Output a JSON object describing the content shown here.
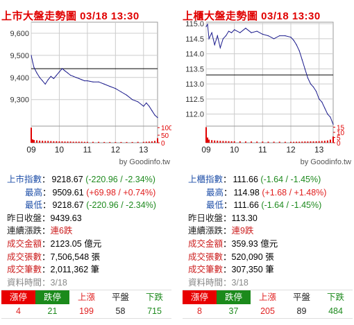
{
  "panels": [
    {
      "title": "上市大盤走勢圖 03/18 13:30",
      "source": "by Goodinfo.tw",
      "chart_data": {
        "type": "line",
        "title": "上市大盤走勢圖 03/18 13:30",
        "x_ticks": [
          "09",
          "10",
          "11",
          "12",
          "13"
        ],
        "y_ticks": [
          9300,
          9400,
          9500,
          9600
        ],
        "y_tick_labels": [
          "9,300",
          "9,400",
          "9,500",
          "9,600"
        ],
        "ylim": [
          9180,
          9650
        ],
        "reference_value": 9439.63,
        "volume_ticks": [
          0,
          50,
          100
        ],
        "volume_ylim": [
          0,
          110
        ],
        "x_hours": [
          9.0,
          9.05,
          9.1,
          9.2,
          9.3,
          9.4,
          9.5,
          9.6,
          9.7,
          9.8,
          9.9,
          10.0,
          10.1,
          10.2,
          10.3,
          10.4,
          10.5,
          10.6,
          10.7,
          10.8,
          10.9,
          11.0,
          11.2,
          11.4,
          11.6,
          11.8,
          12.0,
          12.2,
          12.4,
          12.6,
          12.8,
          13.0,
          13.1,
          13.2,
          13.3,
          13.4,
          13.5
        ],
        "values": [
          9500,
          9470,
          9445,
          9420,
          9400,
          9385,
          9370,
          9390,
          9405,
          9395,
          9410,
          9425,
          9440,
          9430,
          9420,
          9410,
          9405,
          9400,
          9395,
          9390,
          9385,
          9385,
          9380,
          9380,
          9370,
          9360,
          9350,
          9335,
          9320,
          9300,
          9290,
          9270,
          9285,
          9270,
          9250,
          9230,
          9218.67
        ],
        "volume": [
          100,
          22,
          18,
          16,
          14,
          13,
          12,
          12,
          11,
          10,
          10,
          9,
          9,
          8,
          8,
          8,
          7,
          7,
          7,
          7,
          6,
          6,
          6,
          6,
          5,
          5,
          5,
          5,
          5,
          5,
          6,
          6,
          7,
          8,
          9,
          12,
          30
        ]
      },
      "stats": [
        {
          "label": "上市指數",
          "value": "9218.67",
          "change": "(-220.96 / -2.34%)",
          "dir": "down"
        },
        {
          "label": "最高",
          "value": "9509.61",
          "change": "(+69.98 / +0.74%)",
          "dir": "up"
        },
        {
          "label": "最低",
          "value": "9218.67",
          "change": "(-220.96 / -2.34%)",
          "dir": "down"
        }
      ],
      "prev_close": {
        "label": "昨日收盤",
        "value": "9439.63"
      },
      "streak": {
        "label": "連續漲跌",
        "value": "連6跌"
      },
      "amount": {
        "label": "成交金額",
        "value": "2123.05 億元"
      },
      "shares": {
        "label": "成交張數",
        "value": "7,506,548 張"
      },
      "trades": {
        "label": "成交筆數",
        "value": "2,011,362 筆"
      },
      "data_time": {
        "label": "資料時間",
        "value": "3/18"
      },
      "breadth_labels": [
        "漲停",
        "跌停",
        "上漲",
        "平盤",
        "下跌"
      ],
      "breadth_values": [
        "4",
        "21",
        "199",
        "58",
        "715"
      ]
    },
    {
      "title": "上櫃大盤走勢圖 03/18 13:30",
      "source": "by Goodinfo.tw",
      "chart_data": {
        "type": "line",
        "title": "上櫃大盤走勢圖 03/18 13:30",
        "x_ticks": [
          "09",
          "10",
          "11",
          "12",
          "13"
        ],
        "y_ticks": [
          112.0,
          112.5,
          113.0,
          113.5,
          114.0,
          114.5,
          115.0
        ],
        "y_tick_labels": [
          "112.0",
          "112.5",
          "113.0",
          "113.5",
          "114.0",
          "114.5",
          "115.0"
        ],
        "ylim": [
          111.6,
          115.05
        ],
        "reference_value": 113.3,
        "volume_ticks": [
          0,
          5,
          10,
          15
        ],
        "volume_ylim": [
          0,
          16
        ],
        "x_hours": [
          9.0,
          9.05,
          9.1,
          9.2,
          9.3,
          9.4,
          9.5,
          9.6,
          9.7,
          9.8,
          9.9,
          10.0,
          10.2,
          10.4,
          10.6,
          10.8,
          11.0,
          11.2,
          11.4,
          11.6,
          11.8,
          12.0,
          12.1,
          12.2,
          12.3,
          12.4,
          12.5,
          12.6,
          12.7,
          12.8,
          12.9,
          13.0,
          13.1,
          13.2,
          13.3,
          13.4,
          13.5
        ],
        "values": [
          114.9,
          114.98,
          114.5,
          114.7,
          114.3,
          114.6,
          114.2,
          114.5,
          114.6,
          114.75,
          114.7,
          114.8,
          114.7,
          114.85,
          114.7,
          114.75,
          114.65,
          114.6,
          114.5,
          114.6,
          114.6,
          114.55,
          114.45,
          114.3,
          114.1,
          113.8,
          113.5,
          113.2,
          113.0,
          112.9,
          112.75,
          112.5,
          112.4,
          112.2,
          112.0,
          111.9,
          111.66
        ],
        "volume": [
          15,
          5,
          3,
          2.5,
          2.2,
          2,
          1.8,
          1.7,
          1.6,
          1.5,
          1.4,
          1.4,
          1.3,
          1.2,
          1.2,
          1.1,
          1.1,
          1.0,
          1.0,
          1.0,
          0.9,
          0.9,
          0.9,
          1.0,
          1.0,
          1.1,
          1.2,
          1.2,
          1.3,
          1.3,
          1.4,
          1.5,
          1.7,
          1.9,
          2.2,
          3,
          6
        ]
      },
      "stats": [
        {
          "label": "上櫃指數",
          "value": "111.66",
          "change": "(-1.64 / -1.45%)",
          "dir": "down"
        },
        {
          "label": "最高",
          "value": "114.98",
          "change": "(+1.68 / +1.48%)",
          "dir": "up"
        },
        {
          "label": "最低",
          "value": "111.66",
          "change": "(-1.64 / -1.45%)",
          "dir": "down"
        }
      ],
      "prev_close": {
        "label": "昨日收盤",
        "value": "113.30"
      },
      "streak": {
        "label": "連續漲跌",
        "value": "連9跌"
      },
      "amount": {
        "label": "成交金額",
        "value": "359.93 億元"
      },
      "shares": {
        "label": "成交張數",
        "value": "520,090 張"
      },
      "trades": {
        "label": "成交筆數",
        "value": "307,350 筆"
      },
      "data_time": {
        "label": "資料時間",
        "value": "3/18"
      },
      "breadth_labels": [
        "漲停",
        "跌停",
        "上漲",
        "平盤",
        "下跌"
      ],
      "breadth_values": [
        "8",
        "37",
        "205",
        "89",
        "484"
      ]
    }
  ],
  "colors": {
    "line": "#1a1a8c",
    "reference": "#000000",
    "volume": "#e00000",
    "grid": "#cccccc",
    "down": "#1e8a1e",
    "up": "#e02020"
  }
}
